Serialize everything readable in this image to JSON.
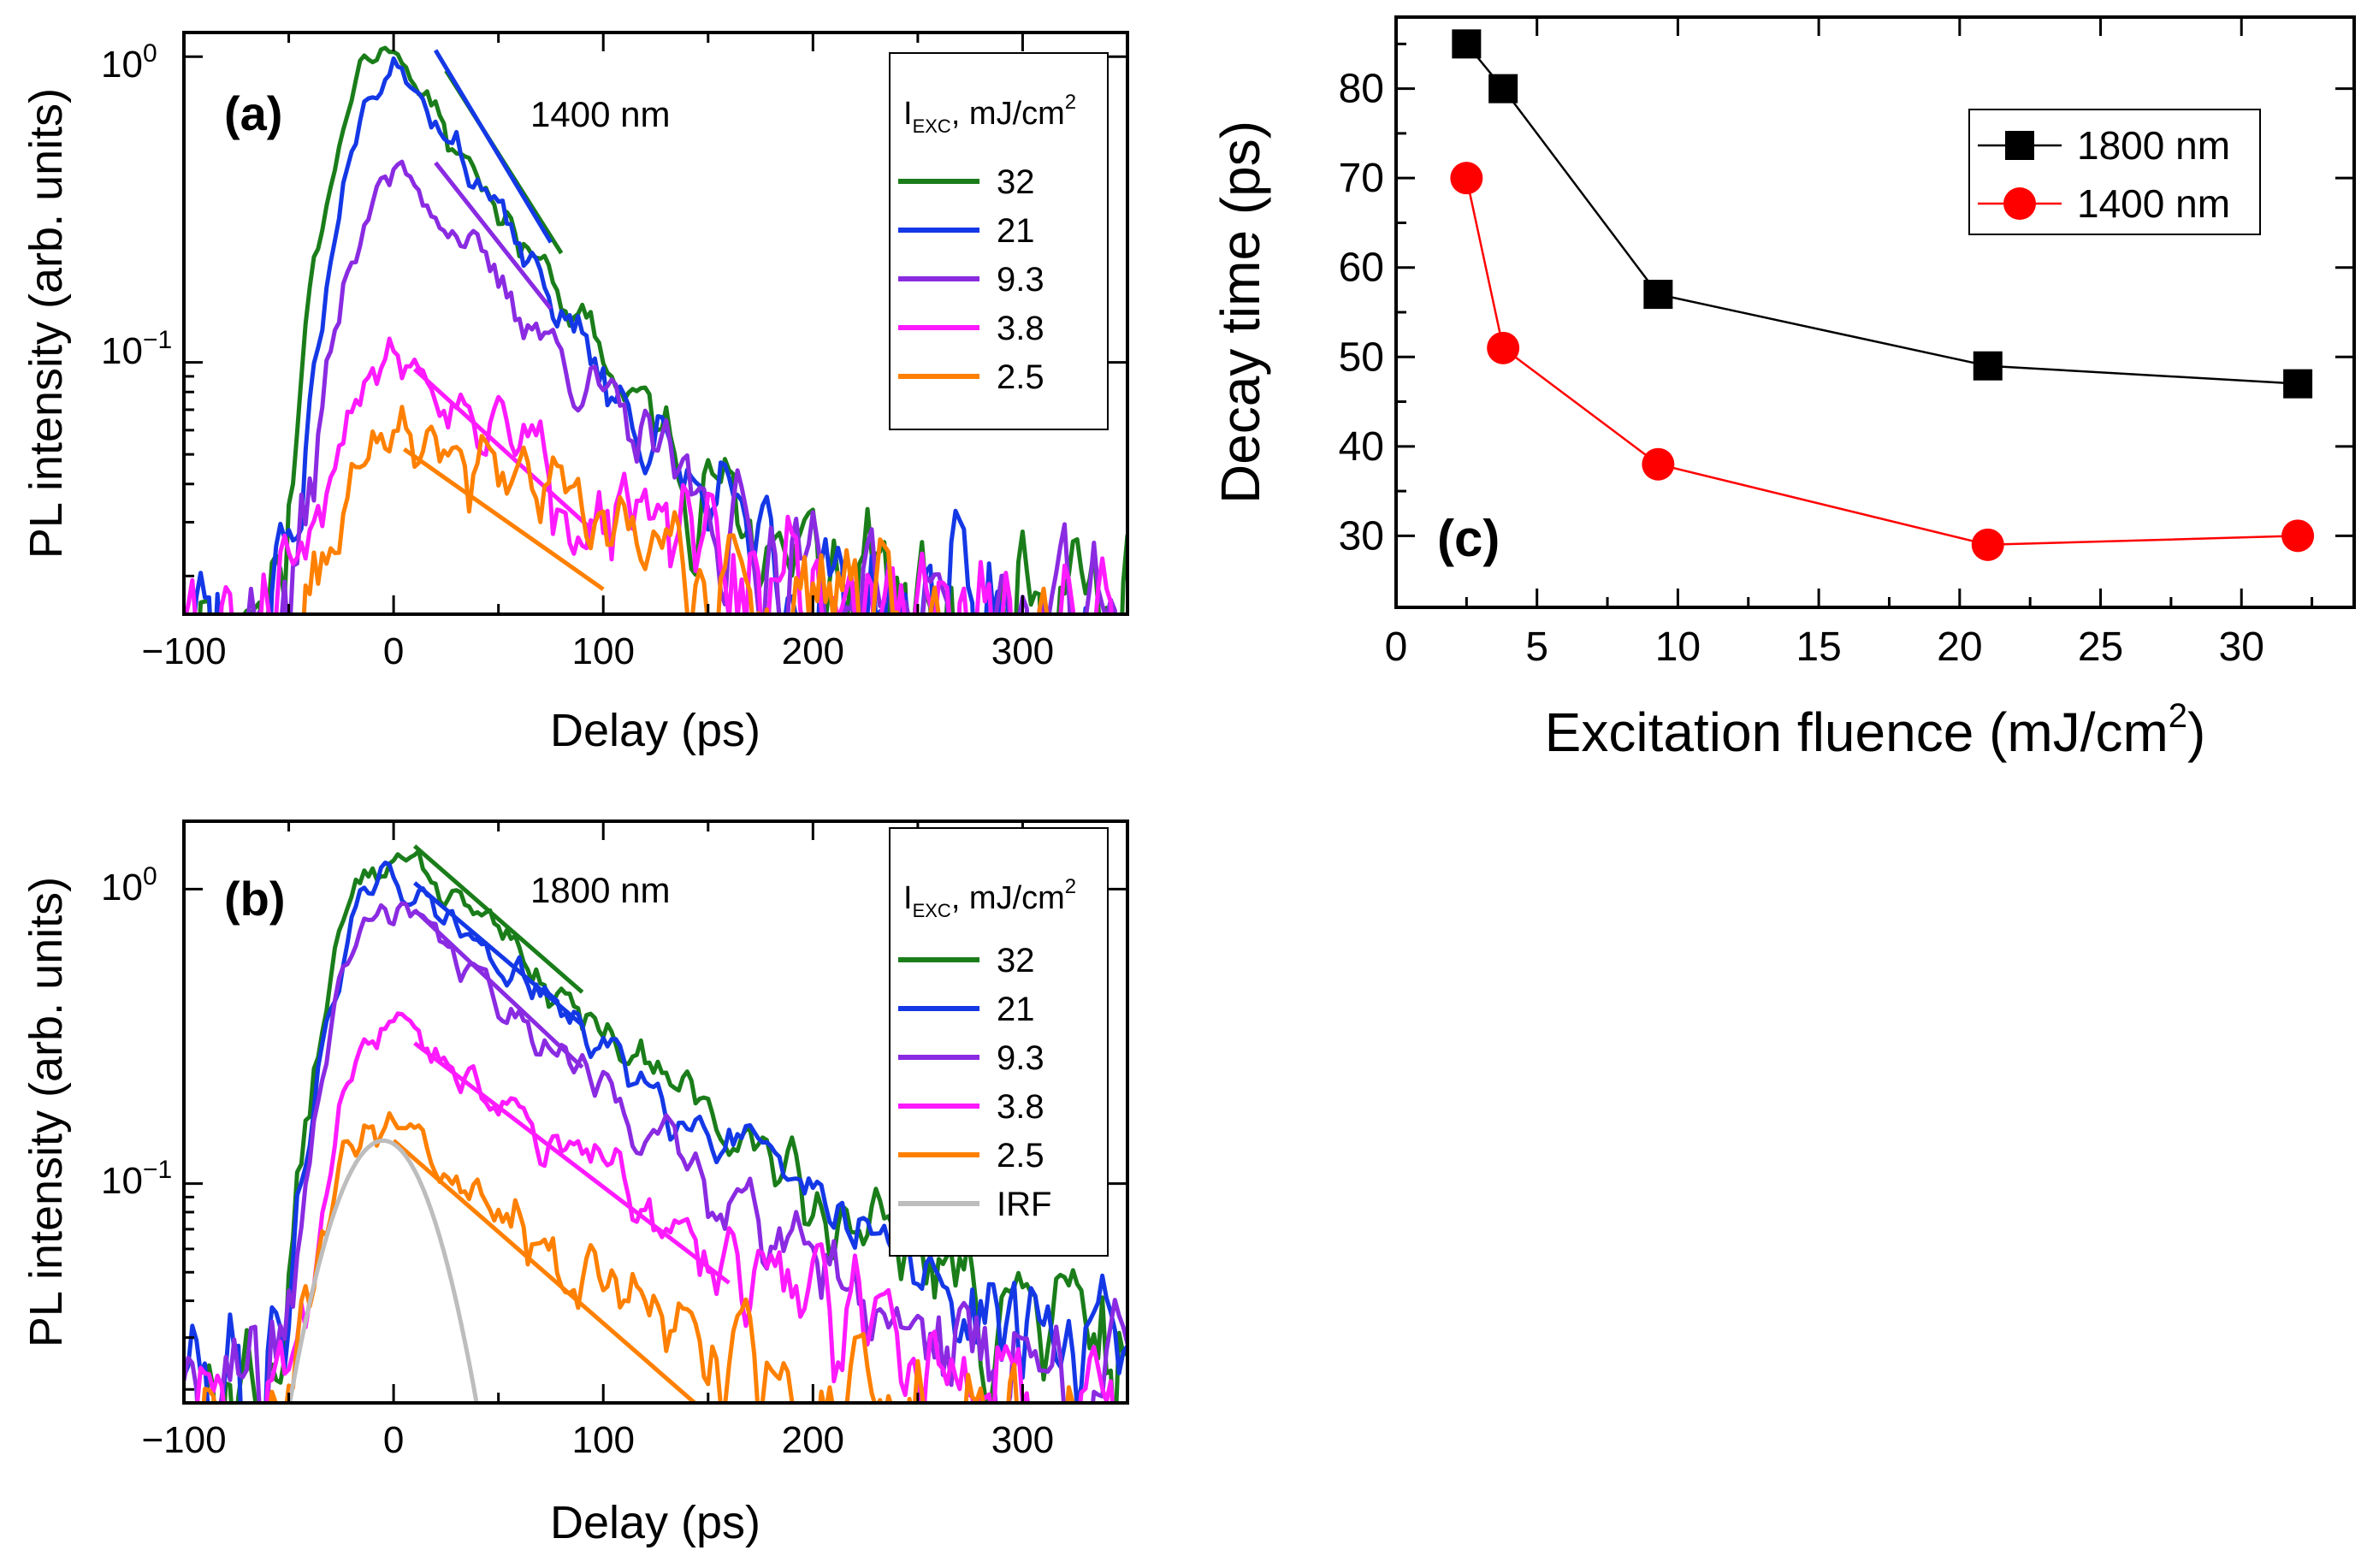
{
  "colors": {
    "s32": "#1a7d1a",
    "s21": "#1438e6",
    "s9_3": "#8a2be2",
    "s3_8": "#ff1aff",
    "s2_5": "#ff8000",
    "irf": "#bdbdbd",
    "c1800": "#000000",
    "c1400": "#ff0000"
  },
  "chart_data": [
    {
      "id": "a",
      "type": "line",
      "panel_label": "(a)",
      "annotation": "1400 nm",
      "xlabel": "Delay (ps)",
      "ylabel": "PL intensity (arb. units)",
      "xlim": [
        -100,
        350
      ],
      "ylim": [
        0.015,
        1.2
      ],
      "yscale": "log",
      "xticks": [
        -100,
        0,
        100,
        200,
        300
      ],
      "xtick_labels": [
        "−100",
        "0",
        "100",
        "200",
        "300"
      ],
      "legend_title": "I",
      "legend_title_sub": "EXC",
      "legend_title_rest": ", mJ/cm",
      "legend_title_sup": "2",
      "series": [
        {
          "name": "32",
          "color_key": "s32",
          "peak": 1.1,
          "t0": 0,
          "tau": 40,
          "floor": 0.024,
          "seed": 11,
          "fit": {
            "x": [
              25,
              80
            ],
            "y0": 0.9
          }
        },
        {
          "name": "21",
          "color_key": "s21",
          "peak": 0.95,
          "t0": 5,
          "tau": 38,
          "floor": 0.022,
          "seed": 23,
          "fit": {
            "x": [
              20,
              75
            ],
            "y0": 1.05
          }
        },
        {
          "name": "9.3",
          "color_key": "s9_3",
          "peak": 0.42,
          "t0": 5,
          "tau": 50,
          "floor": 0.02,
          "seed": 37,
          "fit": {
            "x": [
              20,
              75
            ],
            "y0": 0.45
          }
        },
        {
          "name": "3.8",
          "color_key": "s3_8",
          "peak": 0.1,
          "t0": 0,
          "tau": 70,
          "floor": 0.019,
          "seed": 51,
          "fit": {
            "x": [
              10,
              95
            ],
            "y0": 0.095
          }
        },
        {
          "name": "2.5",
          "color_key": "s2_5",
          "peak": 0.06,
          "t0": 0,
          "tau": 90,
          "floor": 0.015,
          "seed": 67,
          "fit": {
            "x": [
              5,
              100
            ],
            "y0": 0.052
          }
        }
      ]
    },
    {
      "id": "b",
      "type": "line",
      "panel_label": "(b)",
      "annotation": "1800 nm",
      "xlabel": "Delay (ps)",
      "ylabel": "PL intensity (arb. units)",
      "xlim": [
        -100,
        350
      ],
      "ylim": [
        0.018,
        1.7
      ],
      "yscale": "log",
      "xticks": [
        -100,
        0,
        100,
        200,
        300
      ],
      "xtick_labels": [
        "−100",
        "0",
        "100",
        "200",
        "300"
      ],
      "legend_title": "I",
      "legend_title_sub": "EXC",
      "legend_title_rest": ", mJ/cm",
      "legend_title_sup": "2",
      "series": [
        {
          "name": "32",
          "color_key": "s32",
          "peak": 1.35,
          "t0": 0,
          "tau": 70,
          "floor": 0.03,
          "seed": 13,
          "fit": {
            "x": [
              10,
              90
            ],
            "y0": 1.4
          }
        },
        {
          "name": "21",
          "color_key": "s21",
          "peak": 1.1,
          "t0": 0,
          "tau": 72,
          "floor": 0.03,
          "seed": 29,
          "fit": {
            "x": [
              10,
              90
            ],
            "y0": 1.05
          }
        },
        {
          "name": "9.3",
          "color_key": "s9_3",
          "peak": 0.9,
          "t0": 0,
          "tau": 65,
          "floor": 0.026,
          "seed": 41,
          "fit": {
            "x": [
              10,
              90
            ],
            "y0": 0.85
          }
        },
        {
          "name": "3.8",
          "color_key": "s3_8",
          "peak": 0.34,
          "t0": 0,
          "tau": 80,
          "floor": 0.022,
          "seed": 59,
          "fit": {
            "x": [
              10,
              160
            ],
            "y0": 0.3
          }
        },
        {
          "name": "2.5",
          "color_key": "s2_5",
          "peak": 0.16,
          "t0": -5,
          "tau": 70,
          "floor": 0.018,
          "seed": 71,
          "fit": {
            "x": [
              0,
              160
            ],
            "y0": 0.14
          }
        },
        {
          "name": "IRF",
          "color_key": "irf",
          "peak": 0.14,
          "t0": -5,
          "irf_sigma": 22,
          "floor": 0,
          "seed": 0
        }
      ]
    },
    {
      "id": "c",
      "type": "scatter",
      "panel_label": "(c)",
      "xlabel": "Excitation fluence (mJ/cm",
      "xlabel_sup": "2",
      "xlabel_end": ")",
      "ylabel": "Decay time (ps)",
      "xlim": [
        0,
        34
      ],
      "ylim": [
        22,
        88
      ],
      "xticks": [
        0,
        5,
        10,
        15,
        20,
        25,
        30
      ],
      "yticks": [
        30,
        40,
        50,
        60,
        70,
        80
      ],
      "x": [
        2.5,
        3.8,
        9.3,
        21,
        32
      ],
      "series": [
        {
          "name": "1800 nm",
          "color_key": "c1800",
          "marker": "square",
          "values": [
            85,
            80,
            57,
            49,
            47
          ]
        },
        {
          "name": "1400 nm",
          "color_key": "c1400",
          "marker": "circle",
          "values": [
            70,
            51,
            38,
            29,
            30
          ]
        }
      ]
    }
  ]
}
